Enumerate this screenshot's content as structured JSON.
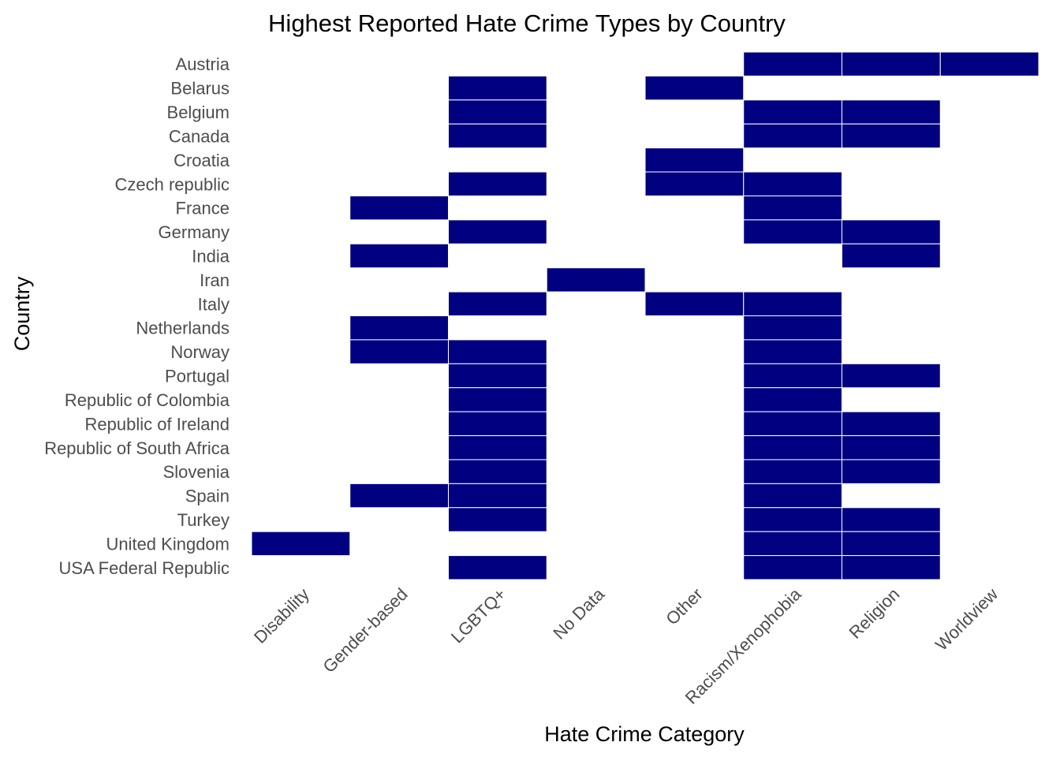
{
  "chart_data": {
    "type": "heatmap",
    "title": "Highest Reported Hate Crime Types by Country",
    "xlabel": "Hate Crime Category",
    "ylabel": "Country",
    "categories": [
      "Disability",
      "Gender-based",
      "LGBTQ+",
      "No Data",
      "Other",
      "Racism/Xenophobia",
      "Religion",
      "Worldview"
    ],
    "countries": [
      "Austria",
      "Belarus",
      "Belgium",
      "Canada",
      "Croatia",
      "Czech republic",
      "France",
      "Germany",
      "India",
      "Iran",
      "Italy",
      "Netherlands",
      "Norway",
      "Portugal",
      "Republic of Colombia",
      "Republic of Ireland",
      "Republic of South Africa",
      "Slovenia",
      "Spain",
      "Turkey",
      "United Kingdom",
      "USA Federal Republic"
    ],
    "cells": [
      {
        "country": "Austria",
        "categories": [
          "Racism/Xenophobia",
          "Religion",
          "Worldview"
        ]
      },
      {
        "country": "Belarus",
        "categories": [
          "LGBTQ+",
          "Other"
        ]
      },
      {
        "country": "Belgium",
        "categories": [
          "LGBTQ+",
          "Racism/Xenophobia",
          "Religion"
        ]
      },
      {
        "country": "Canada",
        "categories": [
          "LGBTQ+",
          "Racism/Xenophobia",
          "Religion"
        ]
      },
      {
        "country": "Croatia",
        "categories": [
          "Other"
        ]
      },
      {
        "country": "Czech republic",
        "categories": [
          "LGBTQ+",
          "Other",
          "Racism/Xenophobia"
        ]
      },
      {
        "country": "France",
        "categories": [
          "Gender-based",
          "Racism/Xenophobia"
        ]
      },
      {
        "country": "Germany",
        "categories": [
          "LGBTQ+",
          "Racism/Xenophobia",
          "Religion"
        ]
      },
      {
        "country": "India",
        "categories": [
          "Gender-based",
          "Religion"
        ]
      },
      {
        "country": "Iran",
        "categories": [
          "No Data"
        ]
      },
      {
        "country": "Italy",
        "categories": [
          "LGBTQ+",
          "Other",
          "Racism/Xenophobia"
        ]
      },
      {
        "country": "Netherlands",
        "categories": [
          "Gender-based",
          "Racism/Xenophobia"
        ]
      },
      {
        "country": "Norway",
        "categories": [
          "Gender-based",
          "LGBTQ+",
          "Racism/Xenophobia"
        ]
      },
      {
        "country": "Portugal",
        "categories": [
          "LGBTQ+",
          "Racism/Xenophobia",
          "Religion"
        ]
      },
      {
        "country": "Republic of Colombia",
        "categories": [
          "LGBTQ+",
          "Racism/Xenophobia"
        ]
      },
      {
        "country": "Republic of Ireland",
        "categories": [
          "LGBTQ+",
          "Racism/Xenophobia",
          "Religion"
        ]
      },
      {
        "country": "Republic of South Africa",
        "categories": [
          "LGBTQ+",
          "Racism/Xenophobia",
          "Religion"
        ]
      },
      {
        "country": "Slovenia",
        "categories": [
          "LGBTQ+",
          "Racism/Xenophobia",
          "Religion"
        ]
      },
      {
        "country": "Spain",
        "categories": [
          "Gender-based",
          "LGBTQ+",
          "Racism/Xenophobia"
        ]
      },
      {
        "country": "Turkey",
        "categories": [
          "LGBTQ+",
          "Racism/Xenophobia",
          "Religion"
        ]
      },
      {
        "country": "United Kingdom",
        "categories": [
          "Disability",
          "Racism/Xenophobia",
          "Religion"
        ]
      },
      {
        "country": "USA Federal Republic",
        "categories": [
          "LGBTQ+",
          "Racism/Xenophobia",
          "Religion"
        ]
      }
    ],
    "fill_color": "#000080",
    "grid": false,
    "legend": "none"
  }
}
